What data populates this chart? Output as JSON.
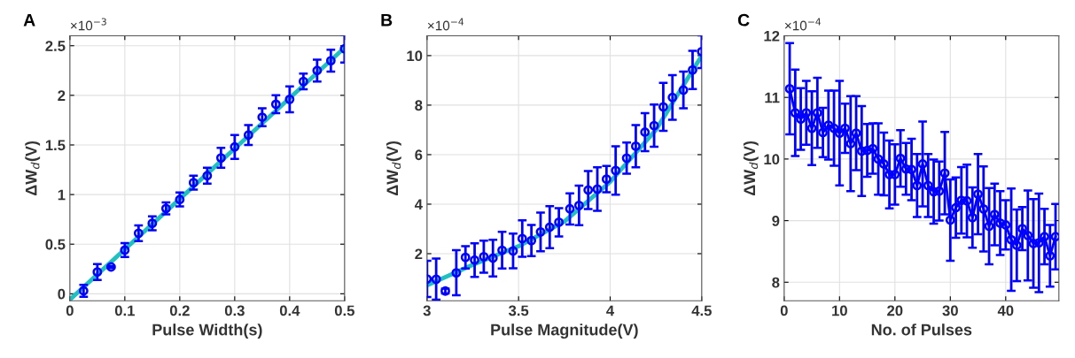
{
  "chart_data": [
    {
      "type": "scatter",
      "title": "A",
      "xlabel": "Pulse Width(s)",
      "ylabel": "ΔW$_{d}$(V)",
      "annotations": [
        "×10$^{−3}$"
      ],
      "grid": true,
      "marker": "circle",
      "xlim": [
        0,
        0.5
      ],
      "xticks": [
        0,
        0.1,
        0.2,
        0.3,
        0.4,
        0.5
      ],
      "ylim": [
        -0.07,
        2.6
      ],
      "yticks": [
        0,
        0.5,
        1,
        1.5,
        2,
        2.5
      ],
      "series": [
        {
          "type": "line",
          "marker": "none",
          "line_style": "solid",
          "color": "#20c0c0",
          "x": [
            0,
            0.5
          ],
          "values": [
            -0.06,
            2.48
          ]
        },
        {
          "color": "#0000ff",
          "x": [
            0.025,
            0.05,
            0.075,
            0.1,
            0.125,
            0.15,
            0.175,
            0.2,
            0.225,
            0.25,
            0.275,
            0.3,
            0.325,
            0.35,
            0.375,
            0.4,
            0.425,
            0.45,
            0.475,
            0.5
          ],
          "values": [
            0.03,
            0.22,
            0.27,
            0.44,
            0.61,
            0.71,
            0.86,
            0.95,
            1.12,
            1.19,
            1.37,
            1.48,
            1.6,
            1.78,
            1.91,
            1.96,
            2.14,
            2.25,
            2.35,
            2.47
          ],
          "errors": [
            0.06,
            0.08,
            0.01,
            0.07,
            0.08,
            0.07,
            0.06,
            0.07,
            0.07,
            0.08,
            0.1,
            0.12,
            0.1,
            0.09,
            0.09,
            0.13,
            0.08,
            0.11,
            0.11,
            0.14
          ]
        }
      ]
    },
    {
      "type": "scatter",
      "title": "B",
      "xlabel": "Pulse Magnitude(V)",
      "ylabel": "ΔW$_{d}$(V)",
      "annotations": [
        "×10$^{−4}$"
      ],
      "grid": true,
      "marker": "circle",
      "xlim": [
        3,
        4.5
      ],
      "xticks": [
        3,
        3.5,
        4,
        4.5
      ],
      "ylim": [
        0.1,
        10.8
      ],
      "yticks": [
        2,
        4,
        6,
        8,
        10
      ],
      "series": [
        {
          "type": "line",
          "marker": "none",
          "line_style": "solid",
          "color": "#20c0c0",
          "x": [
            3.0,
            3.25,
            3.5,
            3.75,
            4.0,
            4.25,
            4.5
          ],
          "values": [
            0.72,
            1.55,
            2.3,
            3.3,
            4.9,
            7.0,
            10.0
          ]
        },
        {
          "color": "#0000ff",
          "x": [
            3.0,
            3.05,
            3.1,
            3.16,
            3.21,
            3.26,
            3.31,
            3.36,
            3.41,
            3.47,
            3.52,
            3.57,
            3.62,
            3.67,
            3.72,
            3.78,
            3.83,
            3.88,
            3.93,
            3.98,
            4.03,
            4.09,
            4.14,
            4.19,
            4.24,
            4.29,
            4.34,
            4.4,
            4.45,
            4.5
          ],
          "values": [
            0.98,
            0.97,
            0.49,
            1.23,
            1.85,
            1.74,
            1.88,
            1.82,
            2.14,
            2.11,
            2.61,
            2.53,
            2.88,
            3.07,
            3.27,
            3.81,
            3.95,
            4.57,
            4.61,
            5.01,
            5.36,
            5.86,
            6.34,
            6.91,
            7.17,
            7.93,
            8.31,
            8.61,
            9.42,
            10.16
          ],
          "errors": [
            0.73,
            0.83,
            0.1,
            0.91,
            0.45,
            0.68,
            0.65,
            0.74,
            0.74,
            0.7,
            0.74,
            0.63,
            0.78,
            0.85,
            0.57,
            0.63,
            0.8,
            0.77,
            0.88,
            0.53,
            0.98,
            0.63,
            0.85,
            0.77,
            0.85,
            0.97,
            0.9,
            0.74,
            0.77,
            0.66
          ]
        }
      ]
    },
    {
      "type": "line",
      "title": "C",
      "xlabel": "No. of Pulses",
      "ylabel": "ΔW$_{d}$(V)",
      "annotations": [
        "×10$^{−4}$"
      ],
      "grid": true,
      "marker": "circle",
      "line_style": "solid",
      "xlim": [
        0,
        49.6
      ],
      "xticks": [
        0,
        10,
        20,
        30,
        40
      ],
      "ylim": [
        7.7,
        12
      ],
      "yticks": [
        8,
        9,
        10,
        11,
        12
      ],
      "series": [
        {
          "color": "#0000ff",
          "x": [
            1,
            2,
            3,
            4,
            5,
            6,
            7,
            8,
            9,
            10,
            11,
            12,
            13,
            14,
            15,
            16,
            17,
            18,
            19,
            20,
            21,
            22,
            23,
            24,
            25,
            26,
            27,
            28,
            29,
            30,
            31,
            32,
            33,
            34,
            35,
            36,
            37,
            38,
            39,
            40,
            41,
            42,
            43,
            44,
            45,
            46,
            47,
            48,
            49
          ],
          "values": [
            11.14,
            10.75,
            10.65,
            10.75,
            10.5,
            10.75,
            10.43,
            10.55,
            10.5,
            10.42,
            10.5,
            10.25,
            10.42,
            10.13,
            10.14,
            10.17,
            10.0,
            9.92,
            9.75,
            9.75,
            10.01,
            9.84,
            9.83,
            9.57,
            9.92,
            9.57,
            9.47,
            9.48,
            9.77,
            9.01,
            9.21,
            9.33,
            9.32,
            9.05,
            9.43,
            9.19,
            8.91,
            9.1,
            8.96,
            8.93,
            8.69,
            8.6,
            8.87,
            8.76,
            8.63,
            8.64,
            8.74,
            8.43,
            8.74
          ],
          "errors": [
            0.74,
            0.7,
            0.5,
            0.52,
            0.6,
            0.57,
            0.4,
            0.56,
            0.61,
            0.85,
            0.4,
            0.77,
            0.6,
            0.73,
            0.43,
            0.41,
            0.58,
            0.51,
            0.55,
            0.49,
            0.46,
            0.42,
            0.5,
            0.51,
            0.69,
            0.51,
            0.52,
            0.48,
            0.67,
            0.66,
            0.49,
            0.54,
            0.59,
            0.49,
            0.65,
            0.69,
            0.62,
            0.5,
            0.52,
            0.4,
            0.83,
            0.58,
            0.35,
            0.73,
            0.72,
            0.8,
            0.45,
            0.5,
            0.53
          ]
        }
      ]
    }
  ]
}
